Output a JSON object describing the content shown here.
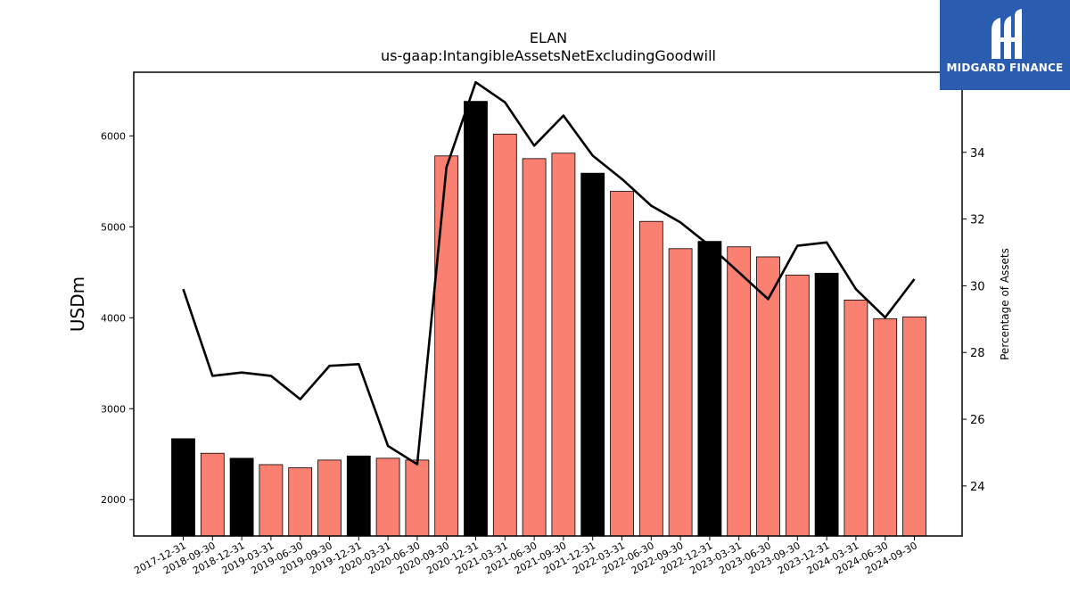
{
  "chart_data": {
    "type": "bar",
    "title": "ELAN",
    "subtitle": "us-gaap:IntangibleAssetsNetExcludingGoodwill",
    "ylabel": "USDm",
    "y2label": "Percentage of Assets",
    "ylim": [
      1600,
      6700
    ],
    "y2lim": [
      22.5,
      36.4
    ],
    "yticks": [
      2000,
      3000,
      4000,
      5000,
      6000
    ],
    "y2ticks": [
      24,
      26,
      28,
      30,
      32,
      34,
      36
    ],
    "categories": [
      "2017-12-31",
      "2018-09-30",
      "2018-12-31",
      "2019-03-31",
      "2019-06-30",
      "2019-09-30",
      "2019-12-31",
      "2020-03-31",
      "2020-06-30",
      "2020-09-30",
      "2020-12-31",
      "2021-03-31",
      "2021-06-30",
      "2021-09-30",
      "2021-12-31",
      "2022-03-31",
      "2022-06-30",
      "2022-09-30",
      "2022-12-31",
      "2023-03-31",
      "2023-06-30",
      "2023-09-30",
      "2023-12-31",
      "2024-03-31",
      "2024-06-30",
      "2024-09-30"
    ],
    "series": [
      {
        "type": "bar",
        "axis": "left",
        "values": [
          2670,
          2510,
          2455,
          2385,
          2350,
          2435,
          2480,
          2455,
          2435,
          5780,
          6380,
          6020,
          5750,
          5810,
          5590,
          5390,
          5060,
          4760,
          4840,
          4780,
          4670,
          4470,
          4490,
          4195,
          3990,
          4010
        ],
        "colors": [
          "#000000",
          "#fa8072",
          "#000000",
          "#fa8072",
          "#fa8072",
          "#fa8072",
          "#000000",
          "#fa8072",
          "#fa8072",
          "#fa8072",
          "#000000",
          "#fa8072",
          "#fa8072",
          "#fa8072",
          "#000000",
          "#fa8072",
          "#fa8072",
          "#fa8072",
          "#000000",
          "#fa8072",
          "#fa8072",
          "#fa8072",
          "#000000",
          "#fa8072",
          "#fa8072",
          "#fa8072"
        ]
      },
      {
        "type": "line",
        "axis": "right",
        "color": "#000000",
        "values": [
          29.9,
          27.3,
          27.4,
          27.3,
          26.6,
          27.6,
          27.65,
          25.2,
          24.65,
          33.55,
          36.1,
          35.5,
          34.2,
          35.1,
          33.9,
          33.2,
          32.4,
          31.9,
          31.2,
          30.4,
          29.6,
          31.2,
          31.3,
          29.9,
          29.05,
          30.2
        ]
      }
    ],
    "grid": false,
    "legend": "none"
  },
  "logo": {
    "text": "MIDGARD FINANCE",
    "background": "#2a5db0"
  }
}
